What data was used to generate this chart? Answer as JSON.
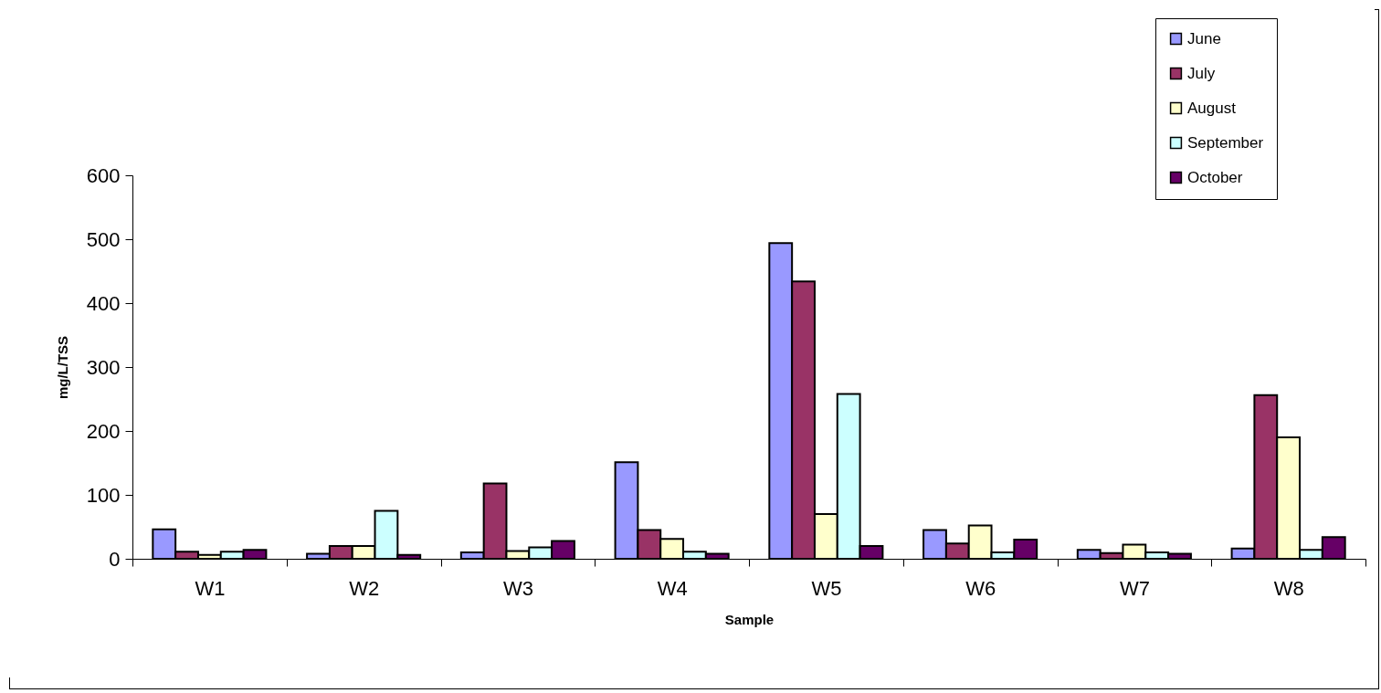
{
  "chart_data": {
    "type": "bar",
    "xlabel": "Sample",
    "ylabel": "mg/L/TSS",
    "categories": [
      "W1",
      "W2",
      "W3",
      "W4",
      "W5",
      "W6",
      "W7",
      "W8"
    ],
    "series": [
      {
        "name": "June",
        "color": "#9999ff",
        "values": [
          46,
          8,
          10,
          151,
          494,
          45,
          14,
          16
        ]
      },
      {
        "name": "July",
        "color": "#993366",
        "values": [
          11,
          20,
          118,
          45,
          434,
          24,
          9,
          256
        ]
      },
      {
        "name": "August",
        "color": "#ffffcc",
        "values": [
          6,
          20,
          12,
          31,
          70,
          52,
          22,
          190
        ]
      },
      {
        "name": "September",
        "color": "#ccffff",
        "values": [
          11,
          75,
          18,
          11,
          258,
          10,
          10,
          14
        ]
      },
      {
        "name": "October",
        "color": "#660066",
        "values": [
          14,
          6,
          28,
          8,
          20,
          30,
          8,
          34
        ]
      }
    ],
    "ylim": [
      0,
      600
    ],
    "yticks": [
      0,
      100,
      200,
      300,
      400,
      500,
      600
    ],
    "legend": "top right"
  }
}
